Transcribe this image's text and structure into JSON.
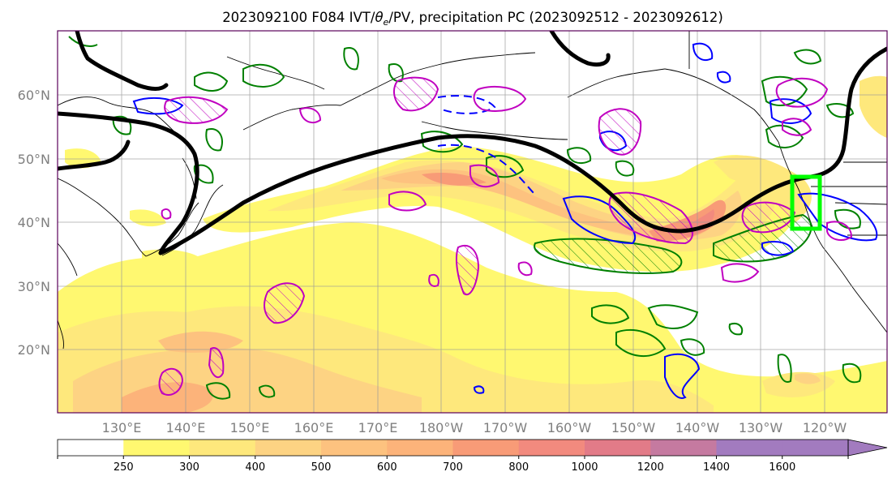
{
  "title_prefix": "2023092100 F084 IVT/",
  "title_theta": "θ",
  "title_theta_sub": "e",
  "title_suffix": "/PV, precipitation PC (2023092512 - 2023092612)",
  "map": {
    "lat_labels": [
      "60°N",
      "50°N",
      "40°N",
      "30°N",
      "20°N"
    ],
    "lon_labels": [
      "130°E",
      "140°E",
      "150°E",
      "160°E",
      "170°E",
      "180°W",
      "170°W",
      "160°W",
      "150°W",
      "140°W",
      "130°W",
      "120°W"
    ],
    "jet_color": "#000000",
    "pv_color": "#0000ff",
    "theta_color": "#008000",
    "pc_color": "#c000c0",
    "box_color": "#00ff00"
  },
  "colorbar": {
    "ticks": [
      "250",
      "300",
      "400",
      "500",
      "600",
      "700",
      "800",
      "1000",
      "1200",
      "1400",
      "1600"
    ],
    "colors": [
      "#ffffff",
      "#fff870",
      "#fee87c",
      "#fdd383",
      "#fdc27f",
      "#fcb37a",
      "#f89b77",
      "#f28a7e",
      "#e27b88",
      "#c57aa0",
      "#a27bbf",
      "#a27bbf"
    ]
  }
}
